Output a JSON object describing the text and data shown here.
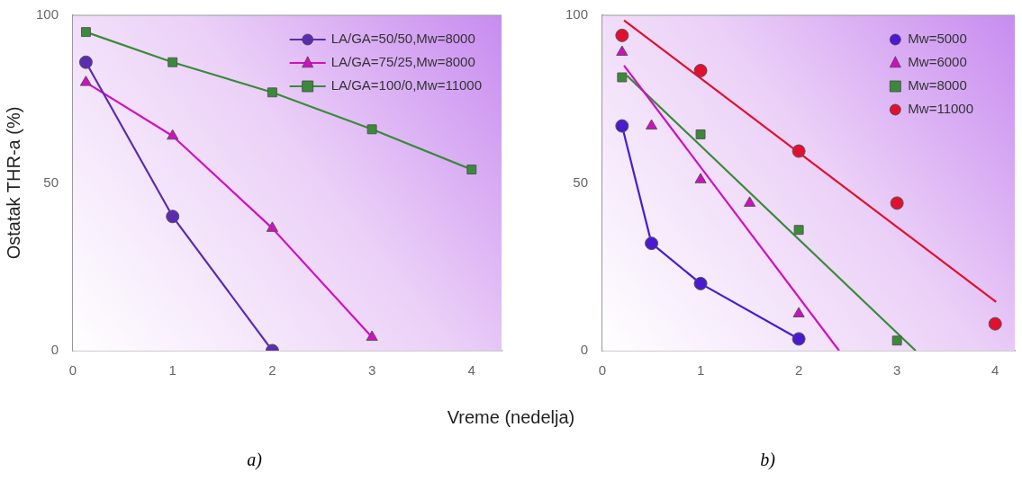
{
  "chart_data": [
    {
      "type": "line",
      "ylabel": "Ostatak THR-a (%)",
      "xlabel": "Vreme (nedelja)",
      "annotations": [
        "a)"
      ],
      "xlim": [
        0,
        4.3
      ],
      "xticks": [
        0,
        1,
        2,
        3,
        4
      ],
      "ylim": [
        0,
        100
      ],
      "yticks": [
        0,
        50,
        100
      ],
      "legend": "top right",
      "grid": false,
      "series": [
        {
          "name": "LA/GA=50/50,Mw=8000",
          "color": "#5a2cb0",
          "marker": "circle",
          "x": [
            0.13,
            1,
            2
          ],
          "values": [
            86,
            40,
            0
          ]
        },
        {
          "name": "LA/GA=75/25,Mw=8000",
          "color": "#d010c0",
          "marker": "triangle",
          "x": [
            0.13,
            1,
            2,
            3
          ],
          "values": [
            80,
            64,
            36.5,
            4
          ]
        },
        {
          "name": "LA/GA=100/0,Mw=11000",
          "color": "#3a8a3a",
          "marker": "square",
          "x": [
            0.13,
            1,
            2,
            3,
            4
          ],
          "values": [
            95,
            86,
            77,
            66,
            54
          ]
        }
      ]
    },
    {
      "type": "scatter",
      "annotations": [
        "b)"
      ],
      "xlim": [
        0,
        4.2
      ],
      "xticks": [
        0,
        1,
        2,
        3,
        4
      ],
      "ylim": [
        0,
        100
      ],
      "yticks": [
        0,
        50,
        100
      ],
      "legend": "top right",
      "grid": false,
      "series": [
        {
          "name": "Mw=5000",
          "type": "line",
          "color": "#4a1ad0",
          "marker": "circle",
          "x": [
            0.2,
            0.5,
            1,
            2
          ],
          "values": [
            67,
            32,
            20,
            3.5
          ]
        },
        {
          "name": "Mw=6000",
          "color": "#cc10c0",
          "marker": "triangle",
          "x": [
            0.2,
            0.5,
            1,
            1.5,
            2
          ],
          "values": [
            89,
            67,
            51,
            44,
            11
          ]
        },
        {
          "name": "Mw=8000",
          "color": "#3a8a3a",
          "marker": "square",
          "x": [
            0.2,
            1,
            2,
            3
          ],
          "values": [
            81.5,
            64.5,
            36,
            3
          ]
        },
        {
          "name": "Mw=11000",
          "color": "#e01030",
          "marker": "circle",
          "x": [
            0.2,
            1,
            2,
            3,
            4
          ],
          "values": [
            94,
            83.5,
            59.5,
            44,
            8
          ]
        },
        {
          "type": "line",
          "color": "#cc10c0",
          "marker": "none",
          "x": [
            0.22,
            2.41
          ],
          "values": [
            85,
            0
          ]
        },
        {
          "type": "line",
          "color": "#3a8a3a",
          "marker": "none",
          "x": [
            0.25,
            3.19
          ],
          "values": [
            82,
            0
          ]
        },
        {
          "type": "line",
          "color": "#e01030",
          "marker": "none",
          "x": [
            0.22,
            4.01
          ],
          "values": [
            98.5,
            14.5
          ]
        }
      ]
    }
  ]
}
